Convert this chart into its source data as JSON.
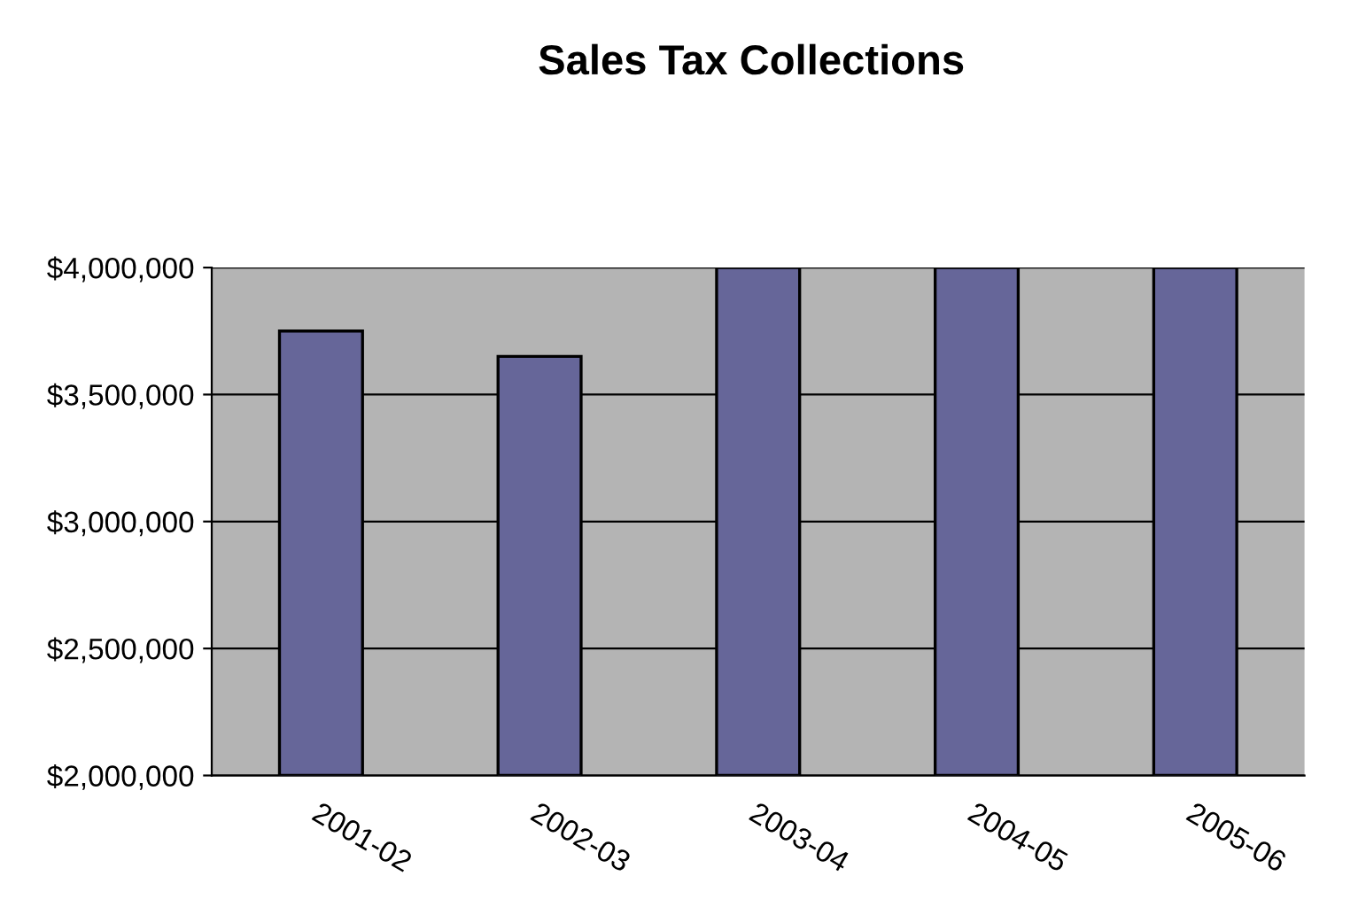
{
  "chart_data": {
    "type": "bar",
    "title": "Sales Tax Collections",
    "categories": [
      "2001-02",
      "2002-03",
      "2003-04",
      "2004-05",
      "2005-06"
    ],
    "values": [
      3750000,
      3650000,
      4000000,
      4000000,
      4000000
    ],
    "color": "#666699",
    "ylim": [
      2000000,
      4000000
    ],
    "yticks": [
      {
        "value": 2000000,
        "label": "$2,000,000"
      },
      {
        "value": 2500000,
        "label": "$2,500,000"
      },
      {
        "value": 3000000,
        "label": "$3,000,000"
      },
      {
        "value": 3500000,
        "label": "$3,500,000"
      },
      {
        "value": 4000000,
        "label": "$4,000,000"
      }
    ],
    "grid": "y",
    "legend": false
  }
}
